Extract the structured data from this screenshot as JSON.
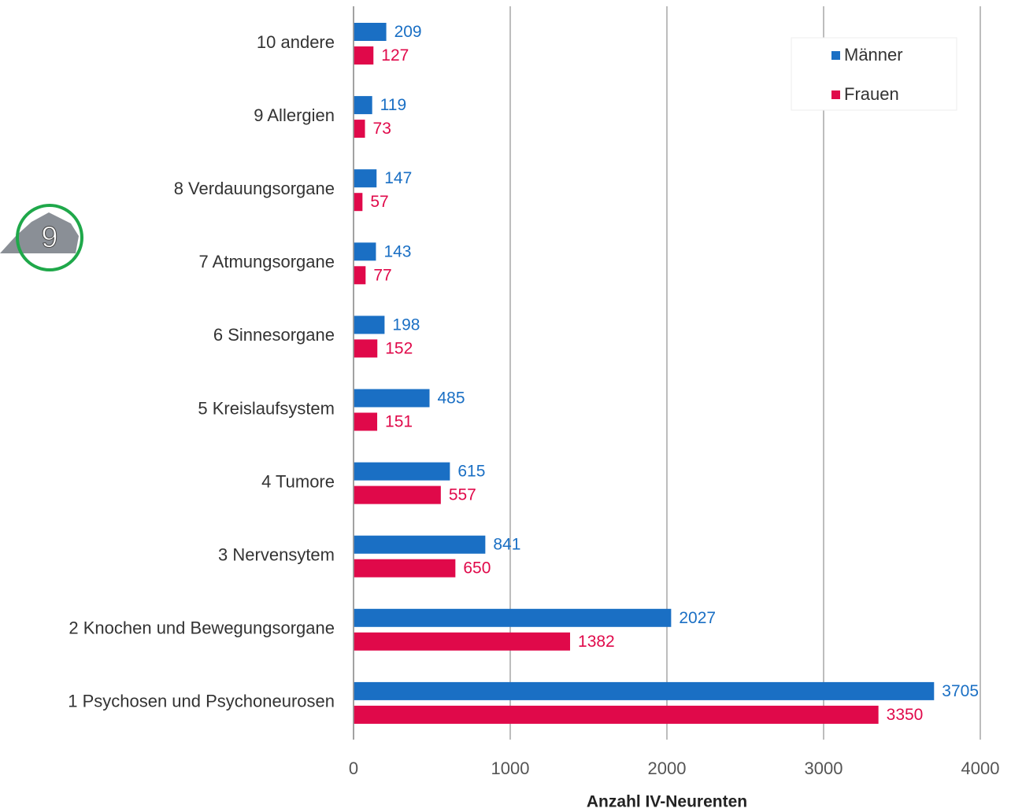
{
  "badge": "9",
  "chart_data": {
    "type": "barh",
    "categories": [
      "10 andere",
      "9 Allergien",
      "8 Verdauungsorgane",
      "7 Atmungsorgane",
      "6 Sinnesorgane",
      "5 Kreislaufsystem",
      "4 Tumore",
      "3 Nervensytem",
      "2 Knochen und Bewegungsorgane",
      "1 Psychosen und Psychoneurosen"
    ],
    "series": [
      {
        "name": "Männer",
        "color": "#1a6fc4",
        "values": [
          209,
          119,
          147,
          143,
          198,
          485,
          615,
          841,
          2027,
          3705
        ]
      },
      {
        "name": "Frauen",
        "color": "#e0094a",
        "values": [
          127,
          73,
          57,
          77,
          152,
          151,
          557,
          650,
          1382,
          3350
        ]
      }
    ],
    "xlim": [
      0,
      4000
    ],
    "xticks": [
      0,
      1000,
      2000,
      3000,
      4000
    ],
    "xlabel": "Anzahl IV-Neurenten",
    "grid": true,
    "legend": "upper right"
  }
}
